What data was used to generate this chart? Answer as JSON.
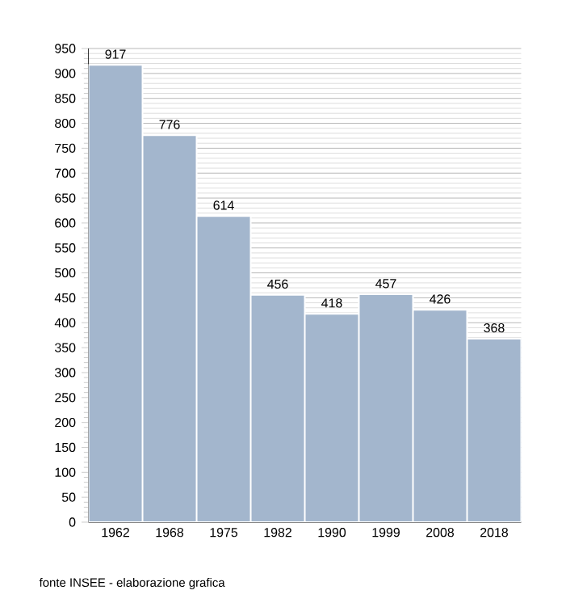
{
  "chart_data": {
    "type": "bar",
    "categories": [
      "1962",
      "1968",
      "1975",
      "1982",
      "1990",
      "1999",
      "2008",
      "2018"
    ],
    "values": [
      917,
      776,
      614,
      456,
      418,
      457,
      426,
      368
    ],
    "color": "#a3b6cd",
    "ylim": [
      0,
      950
    ],
    "yticks": [
      0,
      50,
      100,
      150,
      200,
      250,
      300,
      350,
      400,
      450,
      500,
      550,
      600,
      650,
      700,
      750,
      800,
      850,
      900,
      950
    ],
    "grid": "y",
    "data_labels": true,
    "annotations": [
      "fonte INSEE - elaborazione grafica"
    ]
  }
}
